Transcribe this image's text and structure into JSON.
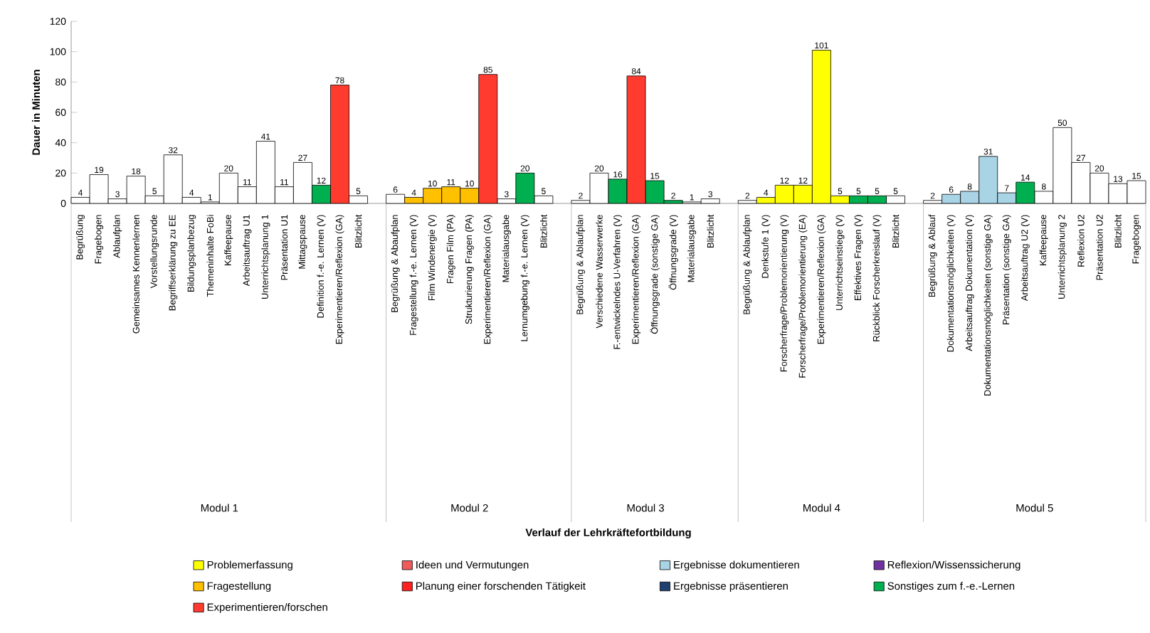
{
  "chart_data": {
    "type": "bar",
    "ylabel": "Dauer in Minuten",
    "categories": [
      "Begrüßung",
      "Fragebogen",
      "Ablaufplan",
      "Gemeinsames Kennenlernen",
      "Vorstellungsrunde",
      "Begriffserklärung zu EE",
      "Bildungsplanbezug",
      "Themeninhalte FoBi",
      "Kaffeepause",
      "Arbeitsauftrag U1",
      "Unterrichtsplanung 1",
      "Präsentation U1",
      "Mittagspause",
      "Definition f.-e. Lernen (V)",
      "Experimentieren/Reflexion (GA)",
      "Blitzlicht",
      null,
      "Begrüßung & Abaufplan",
      "Fragestellung f.-e. Lernen (V)",
      "Film Windenergie (V)",
      "Fragen Film (PA)",
      "Strukturierung Fragen (PA)",
      "Experimentieren/Reflexion (GA)",
      "Materialausgabe",
      "Lernumgebung f.-e. Lernen (V)",
      "Blitzlicht",
      null,
      "Begrüßung & Ablaufplan",
      "Verschiedene Wasserwerke",
      "F.-entwickelndes U-Verfahren (V)",
      "Experimentieren/Reflexion (GA)",
      "Öffnungsgrade (sonstige GA)",
      "Öffnungsgrade (V)",
      "Materialausgabe",
      "Blitzlicht",
      null,
      "Begrüßung & Ablaufplan",
      "Denkstufe 1 (V)",
      "Forscherfrage/Problemorientierung (V)",
      "Forscherfrage/Problemorientierung (EA)",
      "Experimentieren/Reflexion (GA)",
      "Unterrichtseinstiege (V)",
      "Effektives Fragen (V)",
      "Rückblick Forscherkreislauf (V)",
      "Blitzlicht",
      null,
      "Begrüßung & Ablauf",
      "Dokumentationsmöglichkeiten (V)",
      "Arbeitsauftrag Dokumentation (V)",
      "Dokumentationsmöglichkeiten (sonstige GA)",
      "Präsentation (sonstige GA)",
      "Arbeitsauftrag U2 (V)",
      "Kaffeepause",
      "Unterrichtsplanung 2",
      "Reflexion U2",
      "Präsentation U2",
      "Blitzlicht",
      "Fragebogen"
    ],
    "series": [
      {
        "color": "#ffffff",
        "values": [
          4,
          19,
          3,
          18,
          5,
          32,
          4,
          1,
          20,
          11,
          41,
          11,
          27,
          null,
          null,
          5,
          null,
          6,
          null,
          null,
          null,
          null,
          null,
          3,
          null,
          5,
          null,
          2,
          20,
          null,
          null,
          null,
          null,
          1,
          3,
          null,
          2,
          null,
          null,
          null,
          null,
          null,
          null,
          null,
          5,
          null,
          2,
          null,
          null,
          null,
          null,
          null,
          8,
          50,
          27,
          20,
          13,
          15
        ]
      },
      {
        "name": "Problemerfassung",
        "color": "#ffff00",
        "values": [
          null,
          null,
          null,
          null,
          null,
          null,
          null,
          null,
          null,
          null,
          null,
          null,
          null,
          null,
          null,
          null,
          null,
          null,
          null,
          null,
          null,
          null,
          null,
          null,
          null,
          null,
          null,
          null,
          null,
          null,
          null,
          null,
          null,
          null,
          null,
          null,
          null,
          4,
          12,
          12,
          101,
          5,
          null,
          null,
          null,
          null,
          null,
          null,
          null,
          null,
          null,
          null,
          null,
          null,
          null,
          null,
          null,
          null
        ]
      },
      {
        "name": "Ideen und Vermutungen",
        "color": "#f05a5a",
        "values": [
          null,
          null,
          null,
          null,
          null,
          null,
          null,
          null,
          null,
          null,
          null,
          null,
          null,
          null,
          null,
          null,
          null,
          null,
          null,
          null,
          null,
          null,
          null,
          null,
          null,
          null,
          null,
          null,
          null,
          null,
          null,
          null,
          null,
          null,
          null,
          null,
          null,
          null,
          null,
          null,
          null,
          null,
          null,
          null,
          null,
          null,
          null,
          null,
          null,
          null,
          null,
          null,
          null,
          null,
          null,
          null,
          null,
          null
        ]
      },
      {
        "name": "Ergebnisse dokumentieren",
        "color": "#a8d4e6",
        "values": [
          null,
          null,
          null,
          null,
          null,
          null,
          null,
          null,
          null,
          null,
          null,
          null,
          null,
          null,
          null,
          null,
          null,
          null,
          null,
          null,
          null,
          null,
          null,
          null,
          null,
          null,
          null,
          null,
          null,
          null,
          null,
          null,
          null,
          null,
          null,
          null,
          null,
          null,
          null,
          null,
          null,
          null,
          null,
          null,
          null,
          null,
          null,
          6,
          8,
          31,
          7,
          null,
          null,
          null,
          null,
          null,
          null,
          null
        ]
      },
      {
        "name": "Reflexion/Wissenssicherung",
        "color": "#7030a0",
        "values": [
          null,
          null,
          null,
          null,
          null,
          null,
          null,
          null,
          null,
          null,
          null,
          null,
          null,
          null,
          null,
          null,
          null,
          null,
          null,
          null,
          null,
          null,
          null,
          null,
          null,
          null,
          null,
          null,
          null,
          null,
          null,
          null,
          null,
          null,
          null,
          null,
          null,
          null,
          null,
          null,
          null,
          null,
          null,
          null,
          null,
          null,
          null,
          null,
          null,
          null,
          null,
          null,
          null,
          null,
          null,
          null,
          null,
          null
        ]
      },
      {
        "name": "Fragestellung",
        "color": "#ffc000",
        "values": [
          null,
          null,
          null,
          null,
          null,
          null,
          null,
          null,
          null,
          null,
          null,
          null,
          null,
          null,
          null,
          null,
          null,
          null,
          4,
          10,
          11,
          10,
          null,
          null,
          null,
          null,
          null,
          null,
          null,
          null,
          null,
          null,
          null,
          null,
          null,
          null,
          null,
          null,
          null,
          null,
          null,
          null,
          null,
          null,
          null,
          null,
          null,
          null,
          null,
          null,
          null,
          null,
          null,
          null,
          null,
          null,
          null,
          null
        ]
      },
      {
        "name": "Planung einer forschenden Tätigkeit",
        "color": "#ff2020",
        "values": [
          null,
          null,
          null,
          null,
          null,
          null,
          null,
          null,
          null,
          null,
          null,
          null,
          null,
          null,
          null,
          null,
          null,
          null,
          null,
          null,
          null,
          null,
          null,
          null,
          null,
          null,
          null,
          null,
          null,
          null,
          null,
          null,
          null,
          null,
          null,
          null,
          null,
          null,
          null,
          null,
          null,
          null,
          null,
          null,
          null,
          null,
          null,
          null,
          null,
          null,
          null,
          null,
          null,
          null,
          null,
          null,
          null,
          null
        ]
      },
      {
        "name": "Ergebnisse präsentieren",
        "color": "#1f3f6e",
        "values": [
          null,
          null,
          null,
          null,
          null,
          null,
          null,
          null,
          null,
          null,
          null,
          null,
          null,
          null,
          null,
          null,
          null,
          null,
          null,
          null,
          null,
          null,
          null,
          null,
          null,
          null,
          null,
          null,
          null,
          null,
          null,
          null,
          null,
          null,
          null,
          null,
          null,
          null,
          null,
          null,
          null,
          null,
          null,
          null,
          null,
          null,
          null,
          null,
          null,
          null,
          null,
          null,
          null,
          null,
          null,
          null,
          null,
          null
        ]
      },
      {
        "name": "Sonstiges zum f.-e.-Lernen",
        "color": "#00b050",
        "values": [
          null,
          null,
          null,
          null,
          null,
          null,
          null,
          null,
          null,
          null,
          null,
          null,
          null,
          12,
          null,
          null,
          null,
          null,
          null,
          null,
          null,
          null,
          null,
          null,
          20,
          null,
          null,
          null,
          null,
          16,
          null,
          15,
          2,
          null,
          null,
          null,
          null,
          null,
          null,
          null,
          null,
          null,
          5,
          5,
          null,
          null,
          null,
          null,
          null,
          null,
          null,
          14,
          null,
          null,
          null,
          null,
          null,
          null
        ]
      },
      {
        "name": "Experimentieren/forschen",
        "color": "#ff3b2f",
        "values": [
          null,
          null,
          null,
          null,
          null,
          null,
          null,
          null,
          null,
          null,
          null,
          null,
          null,
          null,
          78,
          null,
          null,
          null,
          null,
          null,
          null,
          null,
          85,
          null,
          null,
          null,
          null,
          null,
          null,
          null,
          84,
          null,
          null,
          null,
          null,
          null,
          null,
          null,
          null,
          null,
          null,
          null,
          null,
          null,
          null,
          null,
          null,
          null,
          null,
          null,
          null,
          null,
          null,
          null,
          null,
          null,
          null,
          null
        ]
      }
    ],
    "annotations": [
      "Modul 1",
      "Modul 2",
      "Modul 3",
      "Modul 4",
      "Modul 5",
      "Verlauf der Lehrkräftefortbildung"
    ],
    "ylim": [
      0,
      120
    ],
    "yticks": [
      0,
      20,
      40,
      60,
      80,
      100,
      120
    ],
    "data_labels": true,
    "legend": "bottom"
  }
}
